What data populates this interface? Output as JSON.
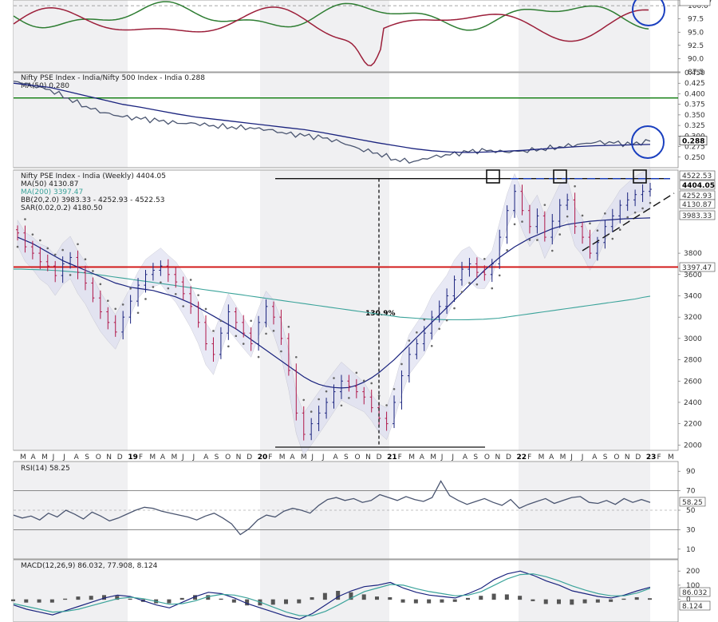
{
  "chart_data": [
    {
      "type": "line",
      "panel": "relative-strength",
      "y_ticks": [
        "101.07",
        "100.0",
        "97.5",
        "95.0",
        "92.5",
        "90.0",
        "87.5"
      ],
      "ylim": [
        87.5,
        101.07
      ],
      "colors": {
        "green": "#2e7d32",
        "red": "#9c1f3a",
        "circle": "#1a3fbf"
      }
    },
    {
      "type": "line",
      "panel": "ratio",
      "title": "Nifty PSE Index - India/Nifty 500 Index - India 0.288",
      "legend": [
        "MA(50) 0.280"
      ],
      "y_ticks": [
        "0.450",
        "0.425",
        "0.400",
        "0.375",
        "0.350",
        "0.325",
        "0.300",
        "0.275",
        "0.250"
      ],
      "last_value": "0.288",
      "ylim": [
        0.225,
        0.45
      ],
      "horizontal_line": 0.39,
      "series": [
        {
          "name": "Ratio",
          "color": "#4a5570",
          "values": [
            0.43,
            0.42,
            0.41,
            0.39,
            0.37,
            0.355,
            0.345,
            0.34,
            0.335,
            0.33,
            0.33,
            0.325,
            0.322,
            0.32,
            0.315,
            0.305,
            0.3,
            0.295,
            0.285,
            0.27,
            0.26,
            0.245,
            0.24,
            0.25,
            0.255,
            0.262,
            0.265,
            0.262,
            0.265,
            0.27,
            0.275,
            0.28,
            0.285,
            0.283,
            0.279,
            0.288
          ]
        },
        {
          "name": "MA(50)",
          "color": "#1a237e",
          "values": [
            0.425,
            0.42,
            0.415,
            0.405,
            0.395,
            0.385,
            0.375,
            0.368,
            0.36,
            0.352,
            0.345,
            0.34,
            0.335,
            0.33,
            0.325,
            0.32,
            0.315,
            0.308,
            0.3,
            0.292,
            0.284,
            0.277,
            0.27,
            0.265,
            0.262,
            0.261,
            0.262,
            0.264,
            0.266,
            0.269,
            0.272,
            0.275,
            0.277,
            0.278,
            0.279,
            0.28
          ]
        }
      ]
    },
    {
      "type": "candlestick",
      "panel": "price",
      "title": "Nifty PSE Index - India (Weekly) 4404.05",
      "legend": [
        "MA(50) 4130.87",
        "MA(200) 3397.47",
        "BB(20,2.0) 3983.33 - 4252.93 - 4522.53",
        "SAR(0.02,0.2) 4180.50"
      ],
      "legend_colors": [
        "#1a237e",
        "#3aa39a",
        "#8888aa",
        "#444444"
      ],
      "y_ticks": [
        "3800",
        "3600",
        "3400",
        "3200",
        "3000",
        "2800",
        "2600",
        "2400",
        "2200",
        "2000"
      ],
      "ylim": [
        1950,
        4580
      ],
      "price_labels": [
        "4522.53",
        "4404.05",
        "4252.93",
        "4130.87",
        "3983.33",
        "3397.47"
      ],
      "annotation": "130.9%",
      "support_level": 3670,
      "resistance_level": 4500,
      "series": [
        {
          "name": "Close",
          "values": [
            3990,
            3860,
            3800,
            3720,
            3680,
            3590,
            3700,
            3760,
            3620,
            3520,
            3380,
            3250,
            3150,
            3060,
            3200,
            3350,
            3500,
            3600,
            3640,
            3680,
            3600,
            3530,
            3420,
            3300,
            3150,
            2950,
            2850,
            3050,
            3250,
            3150,
            3050,
            2950,
            3150,
            3300,
            3200,
            3000,
            2700,
            2300,
            2100,
            2200,
            2300,
            2400,
            2500,
            2600,
            2550,
            2500,
            2450,
            2350,
            2250,
            2200,
            2400,
            2650,
            2850,
            2950,
            3050,
            3200,
            3300,
            3400,
            3550,
            3650,
            3700,
            3620,
            3600,
            3700,
            3950,
            4200,
            4380,
            4200,
            4050,
            4150,
            3950,
            4100,
            4250,
            4300,
            4050,
            3950,
            3800,
            3900,
            4050,
            4150,
            4250,
            4300,
            4350,
            4380,
            4400
          ]
        },
        {
          "name": "MA(50)",
          "values": [
            3950,
            3920,
            3890,
            3850,
            3810,
            3770,
            3730,
            3700,
            3670,
            3640,
            3610,
            3580,
            3550,
            3520,
            3500,
            3480,
            3470,
            3460,
            3450,
            3430,
            3410,
            3390,
            3360,
            3330,
            3290,
            3250,
            3210,
            3170,
            3130,
            3090,
            3040,
            2990,
            2940,
            2890,
            2840,
            2790,
            2740,
            2690,
            2640,
            2600,
            2570,
            2550,
            2540,
            2535,
            2540,
            2560,
            2590,
            2630,
            2680,
            2740,
            2800,
            2870,
            2940,
            3010,
            3080,
            3150,
            3220,
            3290,
            3360,
            3430,
            3500,
            3570,
            3640,
            3700,
            3760,
            3810,
            3860,
            3900,
            3940,
            3970,
            4000,
            4030,
            4050,
            4070,
            4080,
            4090,
            4100,
            4105,
            4110,
            4115,
            4120,
            4124,
            4127,
            4129,
            4131
          ]
        },
        {
          "name": "MA(200)",
          "values": [
            3650,
            3650,
            3648,
            3646,
            3644,
            3640,
            3636,
            3630,
            3624,
            3618,
            3610,
            3600,
            3590,
            3580,
            3570,
            3560,
            3550,
            3540,
            3530,
            3520,
            3510,
            3500,
            3490,
            3480,
            3470,
            3460,
            3450,
            3440,
            3430,
            3420,
            3410,
            3400,
            3390,
            3380,
            3370,
            3360,
            3350,
            3340,
            3330,
            3320,
            3310,
            3300,
            3290,
            3280,
            3270,
            3260,
            3250,
            3240,
            3230,
            3220,
            3210,
            3200,
            3195,
            3190,
            3185,
            3180,
            3178,
            3176,
            3175,
            3175,
            3176,
            3178,
            3180,
            3185,
            3190,
            3200,
            3210,
            3220,
            3230,
            3240,
            3250,
            3260,
            3270,
            3280,
            3290,
            3300,
            3310,
            3320,
            3330,
            3340,
            3350,
            3360,
            3370,
            3385,
            3397
          ]
        }
      ],
      "x_ticks": [
        "M",
        "A",
        "M",
        "J",
        "J",
        "A",
        "S",
        "O",
        "N",
        "D",
        "19",
        "F",
        "M",
        "A",
        "M",
        "J",
        "J",
        "A",
        "S",
        "O",
        "N",
        "D",
        "20",
        "F",
        "M",
        "A",
        "M",
        "J",
        "J",
        "A",
        "S",
        "O",
        "N",
        "D",
        "21",
        "F",
        "M",
        "A",
        "M",
        "J",
        "J",
        "A",
        "S",
        "O",
        "N",
        "D",
        "22",
        "F",
        "M",
        "A",
        "M",
        "J",
        "J",
        "A",
        "S",
        "O",
        "N",
        "D",
        "23",
        "F",
        "M"
      ]
    },
    {
      "type": "line",
      "panel": "rsi",
      "title": "RSI(14) 58.25",
      "y_ticks": [
        "90",
        "70",
        "50",
        "30",
        "10"
      ],
      "last_value": "58.25",
      "ylim": [
        0,
        100
      ],
      "levels": [
        70,
        30
      ],
      "values": [
        45,
        42,
        44,
        40,
        47,
        43,
        50,
        46,
        41,
        48,
        44,
        39,
        42,
        46,
        50,
        53,
        52,
        49,
        47,
        45,
        43,
        40,
        44,
        47,
        42,
        36,
        25,
        31,
        40,
        45,
        43,
        49,
        52,
        50,
        47,
        55,
        61,
        63,
        60,
        62,
        58,
        60,
        66,
        63,
        60,
        64,
        61,
        59,
        63,
        80,
        65,
        60,
        56,
        59,
        62,
        58,
        55,
        61,
        52,
        56,
        59,
        62,
        57,
        60,
        63,
        64,
        58,
        57,
        60,
        56,
        62,
        58,
        61,
        58
      ]
    },
    {
      "type": "line",
      "panel": "macd",
      "title": "MACD(12,26,9) 86.032, 77.908, 8.124",
      "y_ticks": [
        "200",
        "100",
        "0"
      ],
      "values_labels": [
        "86.032",
        "8.124"
      ],
      "ylim": [
        -160,
        280
      ],
      "series": [
        {
          "name": "MACD",
          "color": "#1a237e",
          "values": [
            -40,
            -70,
            -90,
            -110,
            -80,
            -50,
            -20,
            10,
            30,
            20,
            -10,
            -40,
            -60,
            -20,
            20,
            50,
            40,
            10,
            -30,
            -60,
            -90,
            -120,
            -140,
            -100,
            -40,
            20,
            60,
            90,
            100,
            120,
            80,
            50,
            30,
            20,
            10,
            40,
            80,
            140,
            180,
            200,
            170,
            130,
            100,
            60,
            40,
            20,
            10,
            30,
            60,
            86
          ]
        },
        {
          "name": "Signal",
          "color": "#3aa39a",
          "values": [
            -30,
            -50,
            -70,
            -90,
            -85,
            -70,
            -45,
            -20,
            5,
            15,
            5,
            -15,
            -35,
            -30,
            -10,
            20,
            35,
            30,
            10,
            -20,
            -55,
            -90,
            -115,
            -115,
            -85,
            -40,
            10,
            55,
            80,
            105,
            100,
            75,
            55,
            40,
            25,
            30,
            55,
            100,
            145,
            175,
            180,
            160,
            130,
            95,
            65,
            40,
            25,
            25,
            45,
            78
          ]
        }
      ]
    }
  ]
}
